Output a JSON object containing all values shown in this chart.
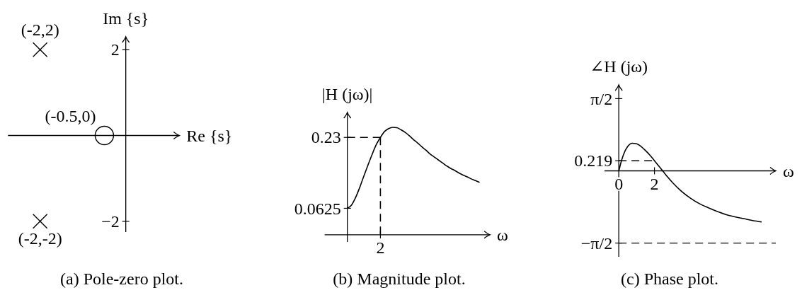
{
  "chart_data": [
    {
      "type": "scatter",
      "xlabel": "Re {s}",
      "ylabel": "Im {s}",
      "categories": [
        null,
        null,
        null,
        null,
        null,
        null,
        null,
        null
      ],
      "ylim": [
        -2.25,
        2.3
      ],
      "yticks": [
        2,
        {
          "value": -2,
          "label": "−2"
        }
      ],
      "series": [
        {
          "name": "(-2,2)",
          "marker": "cross",
          "color": "#000000",
          "values": [
            null,
            2,
            null,
            null,
            null,
            null,
            null,
            null
          ]
        },
        {
          "name": "(-2,-2)",
          "marker": "cross",
          "color": "#000000",
          "values": [
            null,
            -2,
            null,
            null,
            null,
            null,
            null,
            null
          ]
        },
        {
          "name": "(-0.5,0)",
          "marker": "circle",
          "color": "#000000",
          "values": [
            null,
            null,
            null,
            null,
            0,
            null,
            null,
            null
          ]
        }
      ],
      "annotations": [
        "(a) Pole-zero plot."
      ]
    },
    {
      "type": "line",
      "xlabel": "ω",
      "ylabel": "|H (jω)|",
      "categories": [
        null,
        null,
        null,
        null,
        null,
        null,
        null,
        null,
        null,
        null,
        null,
        null,
        null,
        "2",
        null,
        null,
        null,
        null,
        null,
        null,
        null,
        null,
        null,
        null,
        null,
        null,
        null,
        null,
        null,
        null,
        null,
        null,
        null,
        null,
        null,
        null,
        null,
        null,
        null,
        null
      ],
      "ylim": [
        -0.017,
        0.289
      ],
      "yticks": [
        0.0625,
        0.23
      ],
      "series": [
        {
          "color": "#000000",
          "values": [
            null,
            null,
            null,
            null,
            null,
            0.063,
            0.07,
            0.088,
            0.112,
            0.139,
            0.165,
            0.19,
            0.213,
            0.23,
            0.244,
            0.251,
            0.254,
            0.253,
            0.248,
            0.242,
            0.234,
            0.225,
            0.217,
            0.208,
            0.2,
            0.191,
            0.184,
            0.177,
            0.17,
            0.163,
            0.157,
            0.152,
            0.146,
            0.141,
            0.137,
            0.132,
            0.128,
            0.124,
            null,
            null
          ]
        },
        {
          "color": "#000000",
          "line_style": "dashed",
          "values": [
            null,
            null,
            null,
            null,
            null,
            0.23,
            0.23,
            0.23,
            0.23,
            0.23,
            0.23,
            0.23,
            0.23,
            0.23,
            null,
            null,
            null,
            null,
            null,
            null,
            null,
            null,
            null,
            null,
            null,
            null,
            null,
            null,
            null,
            null,
            null,
            null,
            null,
            null,
            null,
            null,
            null,
            null,
            null,
            null
          ]
        },
        {
          "color": "#000000",
          "line_style": "dashed",
          "x": [
            "2",
            "2"
          ],
          "values": [
            0.23,
            0
          ]
        }
      ],
      "annotations": [
        "(b) Magnitude plot."
      ]
    },
    {
      "type": "line",
      "xlabel": "ω",
      "ylabel": "∠H (jω)",
      "xlim": [
        -0.8,
        8.8
      ],
      "ylim": [
        -1.87,
        1.87
      ],
      "xticks": [
        0,
        2
      ],
      "yticks": [
        {
          "value": 1.571,
          "label": "π/2"
        },
        0.219,
        {
          "value": -1.571,
          "label": "−π/2"
        }
      ],
      "series": [
        {
          "color": "#000000",
          "x": [
            0,
            0.05,
            0.1,
            0.25,
            0.5,
            0.75,
            1,
            1.25,
            1.5,
            1.75,
            2,
            2.25,
            2.5,
            2.75,
            3,
            3.5,
            4,
            4.5,
            5,
            5.5,
            6,
            6.5,
            7,
            7.5,
            8
          ],
          "values": [
            0,
            0.07,
            0.15,
            0.34,
            0.53,
            0.6,
            0.59,
            0.53,
            0.44,
            0.34,
            0.22,
            0.1,
            -0.02,
            -0.14,
            -0.25,
            -0.44,
            -0.59,
            -0.71,
            -0.8,
            -0.88,
            -0.95,
            -1,
            -1.04,
            -1.08,
            -1.11
          ]
        },
        {
          "color": "#000000",
          "line_style": "dashed",
          "x": [
            0,
            2
          ],
          "values": [
            0.22,
            0.22
          ]
        }
      ],
      "ref_lines": [
        {
          "axis": "y",
          "value": -1.571,
          "line_style": "dashed",
          "color": "#000000"
        }
      ],
      "annotations": [
        "(c) Phase plot."
      ]
    }
  ]
}
